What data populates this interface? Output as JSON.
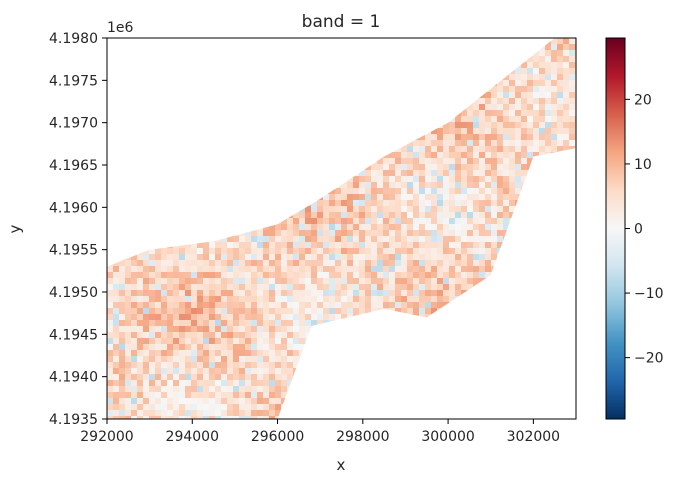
{
  "chart_data": {
    "type": "heatmap",
    "title": "band = 1",
    "xlabel": "x",
    "ylabel": "y",
    "y_offset_text": "1e6",
    "xlim": [
      292000,
      303000
    ],
    "ylim": [
      4193500,
      4198000
    ],
    "xticks": [
      292000,
      294000,
      296000,
      298000,
      300000,
      302000
    ],
    "xtick_labels": [
      "292000",
      "294000",
      "296000",
      "298000",
      "300000",
      "302000"
    ],
    "yticks": [
      4193500,
      4194000,
      4194500,
      4195000,
      4195500,
      4196000,
      4196500,
      4197000,
      4197500,
      4198000
    ],
    "ytick_labels": [
      "4.1935",
      "4.1940",
      "4.1945",
      "4.1950",
      "4.1955",
      "4.1960",
      "4.1965",
      "4.1970",
      "4.1975",
      "4.1980"
    ],
    "colorbar": {
      "colormap": "RdBu_r",
      "vmin": -29.5,
      "vmax": 29.5,
      "ticks": [
        -20,
        -10,
        0,
        10,
        20
      ],
      "tick_labels": [
        "−20",
        "−10",
        "0",
        "10",
        "20"
      ]
    },
    "data_region": {
      "upper_boundary": [
        [
          292000,
          4195300
        ],
        [
          293000,
          4195500
        ],
        [
          294500,
          4195600
        ],
        [
          296000,
          4195800
        ],
        [
          297000,
          4196100
        ],
        [
          298500,
          4196600
        ],
        [
          300000,
          4197000
        ],
        [
          301500,
          4197600
        ],
        [
          302500,
          4198000
        ],
        [
          303000,
          4198000
        ]
      ],
      "lower_boundary": [
        [
          292000,
          4193500
        ],
        [
          296000,
          4193500
        ],
        [
          296800,
          4194600
        ],
        [
          298500,
          4194800
        ],
        [
          299500,
          4194700
        ],
        [
          301000,
          4195200
        ],
        [
          302000,
          4196600
        ],
        [
          303000,
          4196700
        ]
      ]
    },
    "typical_value": 6,
    "value_range": [
      -29.5,
      29.5
    ],
    "grid": false,
    "legend": "none"
  }
}
